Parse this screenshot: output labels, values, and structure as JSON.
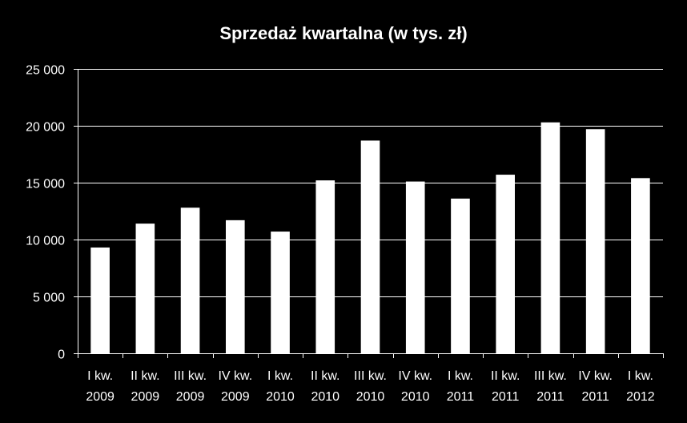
{
  "chart_data": {
    "type": "bar",
    "title": "Sprzedaż kwartalna (w tys. zł)",
    "xlabel": "",
    "ylabel": "",
    "ylim": [
      0,
      25000
    ],
    "yticks": [
      0,
      5000,
      10000,
      15000,
      20000,
      25000
    ],
    "ytick_labels": [
      "0",
      "5 000",
      "10 000",
      "15 000",
      "20 000",
      "25 000"
    ],
    "grid": true,
    "legend": "none",
    "categories": [
      [
        "I kw.",
        "2009"
      ],
      [
        "II kw.",
        "2009"
      ],
      [
        "III kw.",
        "2009"
      ],
      [
        "IV kw.",
        "2009"
      ],
      [
        "I kw.",
        "2010"
      ],
      [
        "II kw.",
        "2010"
      ],
      [
        "III kw.",
        "2010"
      ],
      [
        "IV kw.",
        "2010"
      ],
      [
        "I kw.",
        "2011"
      ],
      [
        "II kw.",
        "2011"
      ],
      [
        "III kw.",
        "2011"
      ],
      [
        "IV kw.",
        "2011"
      ],
      [
        "I kw.",
        "2012"
      ]
    ],
    "values": [
      9300,
      11400,
      12800,
      11700,
      10700,
      15200,
      18700,
      15100,
      13600,
      15700,
      20300,
      19700,
      15400
    ],
    "colors": {
      "background": "#000000",
      "bar": "#ffffff",
      "grid": "#ffffff",
      "text": "#ffffff"
    }
  }
}
